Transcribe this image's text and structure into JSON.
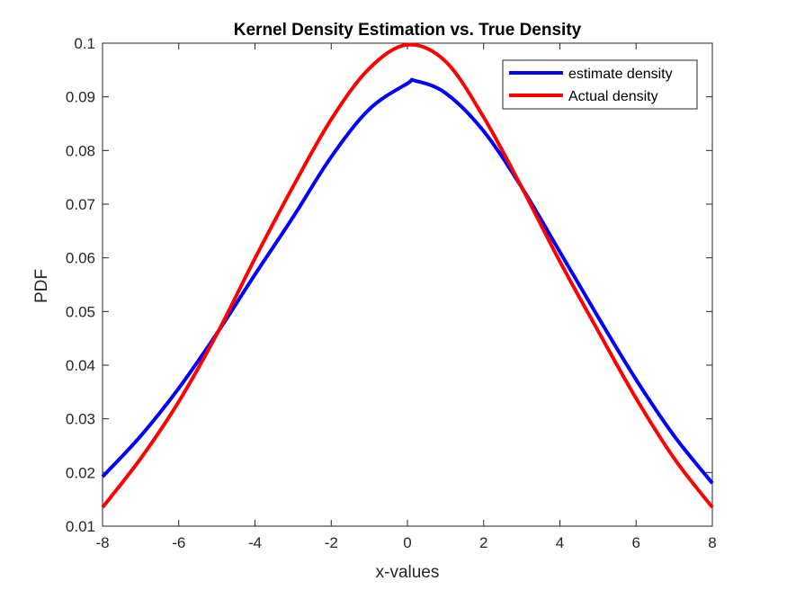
{
  "chart_data": {
    "type": "line",
    "title": "Kernel Density Estimation vs. True Density",
    "xlabel": "x-values",
    "ylabel": "PDF",
    "xlim": [
      -8,
      8
    ],
    "ylim": [
      0.01,
      0.1
    ],
    "grid": false,
    "legend_position": "top-right",
    "x_ticks": [
      -8,
      -6,
      -4,
      -2,
      0,
      2,
      4,
      6,
      8
    ],
    "x_tick_labels": [
      "-8",
      "-6",
      "-4",
      "-2",
      "0",
      "2",
      "4",
      "6",
      "8"
    ],
    "y_ticks": [
      0.01,
      0.02,
      0.03,
      0.04,
      0.05,
      0.06,
      0.07,
      0.08,
      0.09,
      0.1
    ],
    "y_tick_labels": [
      "0.01",
      "0.02",
      "0.03",
      "0.04",
      "0.05",
      "0.06",
      "0.07",
      "0.08",
      "0.09",
      "0.1"
    ],
    "series": [
      {
        "name": "estimate density",
        "color": "#0000FF",
        "x": [
          -8,
          -7,
          -6,
          -5,
          -4,
          -3,
          -2,
          -1,
          0,
          0.2,
          1,
          2,
          3,
          4,
          5,
          6,
          7,
          8
        ],
        "y": [
          0.0192,
          0.0268,
          0.0357,
          0.0459,
          0.0569,
          0.0676,
          0.0788,
          0.0877,
          0.0925,
          0.093,
          0.0907,
          0.0836,
          0.0731,
          0.0611,
          0.049,
          0.0373,
          0.0268,
          0.018
        ]
      },
      {
        "name": "Actual density",
        "color": "#FF0000",
        "x": [
          -8,
          -7,
          -6,
          -5,
          -4,
          -3,
          -2,
          -1,
          0,
          1,
          2,
          3,
          4,
          5,
          6,
          7,
          8
        ],
        "y": [
          0.0135,
          0.0226,
          0.0332,
          0.0458,
          0.0599,
          0.0733,
          0.0858,
          0.0953,
          0.0997,
          0.0966,
          0.0862,
          0.0731,
          0.0593,
          0.0464,
          0.0338,
          0.0226,
          0.0135
        ]
      }
    ]
  }
}
